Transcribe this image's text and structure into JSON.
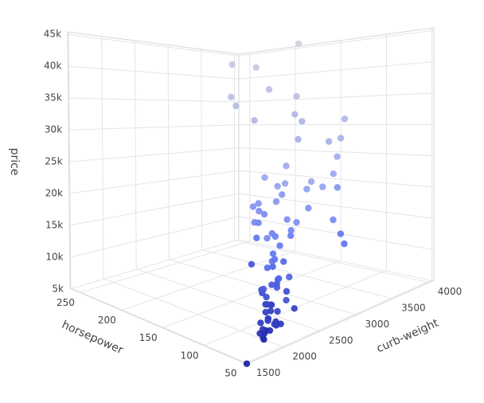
{
  "chart_data": {
    "type": "scatter3d",
    "xaxis_title": "horsepower",
    "yaxis_title": "curb-weight",
    "zaxis_title": "price",
    "xlim": [
      48,
      262
    ],
    "ylim": [
      1488,
      4066
    ],
    "zlim": [
      5118,
      45400
    ],
    "xticks": [
      50,
      100,
      150,
      200,
      250
    ],
    "yticks": [
      1500,
      2000,
      2500,
      3000,
      3500,
      4000
    ],
    "zticks": [
      {
        "value": 5000,
        "label": "5k"
      },
      {
        "value": 10000,
        "label": "10k"
      },
      {
        "value": 15000,
        "label": "15k"
      },
      {
        "value": 20000,
        "label": "20k"
      },
      {
        "value": 25000,
        "label": "25k"
      },
      {
        "value": 30000,
        "label": "30k"
      },
      {
        "value": 35000,
        "label": "35k"
      },
      {
        "value": 40000,
        "label": "40k"
      },
      {
        "value": 45000,
        "label": "45k"
      }
    ],
    "grid": true,
    "colorscale": [
      [
        5118,
        "#1a1fa5"
      ],
      [
        12000,
        "#5a70f0"
      ],
      [
        22000,
        "#9aa5ee"
      ],
      [
        45400,
        "#d0d0dc"
      ]
    ],
    "x": [
      48,
      62,
      68,
      68,
      69,
      70,
      70,
      68,
      69,
      76,
      76,
      62,
      68,
      70,
      84,
      86,
      88,
      84,
      73,
      86,
      92,
      70,
      100,
      90,
      68,
      97,
      95,
      101,
      100,
      110,
      88,
      111,
      116,
      114,
      121,
      116,
      102,
      110,
      145,
      152,
      160,
      161,
      156,
      154,
      143,
      142,
      160,
      110,
      114,
      123,
      95,
      162,
      140,
      116,
      182,
      207,
      176,
      200,
      184,
      262,
      156,
      176,
      155,
      123,
      115,
      114,
      106,
      95,
      134,
      123,
      145,
      111,
      90,
      85,
      114,
      121,
      152,
      102,
      90,
      69,
      58,
      88,
      101,
      121,
      160,
      135,
      200,
      184
    ],
    "y": [
      1488,
      1874,
      1900,
      1940,
      1967,
      1989,
      2004,
      2015,
      2050,
      2109,
      2004,
      2120,
      2128,
      2145,
      2170,
      2191,
      2236,
      2240,
      2204,
      2263,
      2275,
      2290,
      2302,
      2324,
      2380,
      2410,
      2458,
      2465,
      2535,
      2507,
      2548,
      2600,
      2657,
      2734,
      2756,
      2811,
      2823,
      2844,
      2756,
      2910,
      2926,
      3016,
      2952,
      3012,
      3045,
      3052,
      3095,
      3131,
      3139,
      3230,
      3252,
      3370,
      3151,
      3366,
      3230,
      3285,
      3366,
      3490,
      3900,
      3950,
      3505,
      3740,
      3515,
      3770,
      3560,
      3430,
      3495,
      3408,
      3750,
      3715,
      3950,
      2800,
      2535,
      2340,
      2661,
      2710,
      2800,
      2337,
      2212,
      2024,
      1985,
      2403,
      2395,
      2975,
      2975,
      3071,
      3139,
      3950
    ],
    "z": [
      5151,
      6295,
      6479,
      6855,
      5399,
      6095,
      6377,
      7957,
      6229,
      7295,
      7129,
      7099,
      6649,
      6989,
      7603,
      8499,
      8249,
      7499,
      7999,
      8189,
      8949,
      9279,
      9549,
      7775,
      7898,
      9988,
      9995,
      12945,
      10198,
      11595,
      10898,
      13295,
      11048,
      13950,
      15040,
      11259,
      17450,
      15998,
      16500,
      17669,
      18150,
      18399,
      15580,
      16845,
      19045,
      21485,
      22470,
      22625,
      18420,
      20970,
      16695,
      18950,
      24565,
      21105,
      31600,
      34028,
      36880,
      40960,
      45400,
      36000,
      35550,
      32250,
      28176,
      31400,
      25552,
      28248,
      13415,
      12440,
      22018,
      28248,
      18920,
      17710,
      8845,
      10295,
      12170,
      15645,
      9639,
      8921,
      10345,
      7609,
      7738,
      11199,
      16430,
      14489,
      12964,
      22018,
      41315,
      30760
    ]
  }
}
